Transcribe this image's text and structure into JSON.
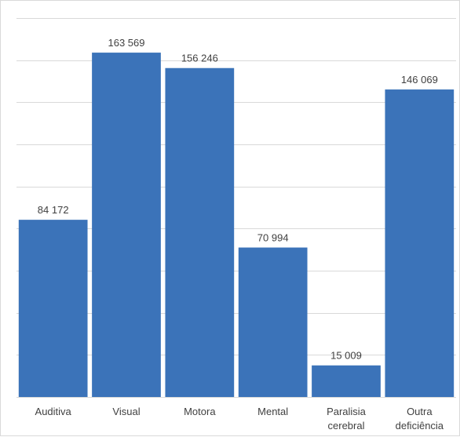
{
  "chart_data": {
    "type": "bar",
    "categories": [
      [
        "Auditiva"
      ],
      [
        "Visual"
      ],
      [
        "Motora"
      ],
      [
        "Mental"
      ],
      [
        "Paralisia",
        "cerebral"
      ],
      [
        "Outra",
        "deficiência"
      ]
    ],
    "values": [
      84172,
      163569,
      156246,
      70994,
      15009,
      146069
    ],
    "data_labels": [
      "84 172",
      "163 569",
      "156 246",
      "70 994",
      "15 009",
      "146 069"
    ],
    "title": "",
    "xlabel": "",
    "ylabel": "",
    "ylim": [
      0,
      180000
    ],
    "grid": true,
    "legend": "none",
    "colors": {
      "bar": "#3b73b9",
      "grid": "#d9d9d9",
      "text": "#404040"
    }
  }
}
